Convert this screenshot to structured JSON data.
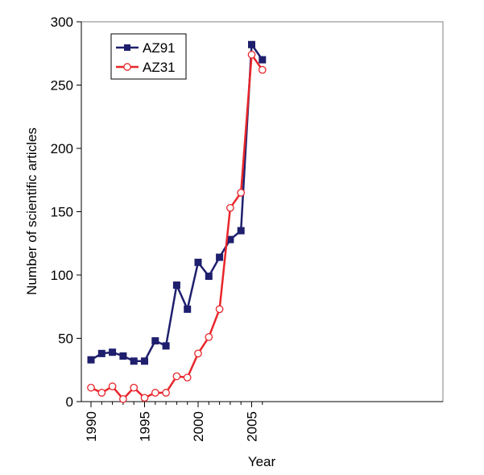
{
  "chart_data": {
    "type": "line",
    "title": "",
    "xlabel": "Year",
    "ylabel": "Number of scientific articles",
    "xlim": [
      1990,
      2006.5
    ],
    "ylim": [
      0,
      300
    ],
    "xticks": [
      "1990",
      "1995",
      "2000",
      "2005"
    ],
    "yticks": [
      "0",
      "50",
      "100",
      "150",
      "200",
      "250",
      "300"
    ],
    "grid": false,
    "legend_position": "top-left",
    "x": [
      1990,
      1991,
      1992,
      1993,
      1994,
      1995,
      1996,
      1997,
      1998,
      1999,
      2000,
      2001,
      2002,
      2003,
      2004,
      2005,
      2006
    ],
    "series": [
      {
        "name": "AZ91",
        "color": "#1f1f6e",
        "marker": "filled-square",
        "values": [
          33,
          38,
          39,
          36,
          32,
          32,
          48,
          44,
          92,
          73,
          110,
          99,
          114,
          128,
          135,
          282,
          270
        ]
      },
      {
        "name": "AZ31",
        "color": "#e8262b",
        "marker": "open-circle",
        "values": [
          11,
          7,
          12,
          2,
          11,
          3,
          7,
          7,
          20,
          19,
          38,
          51,
          73,
          153,
          165,
          274,
          262
        ]
      }
    ]
  }
}
